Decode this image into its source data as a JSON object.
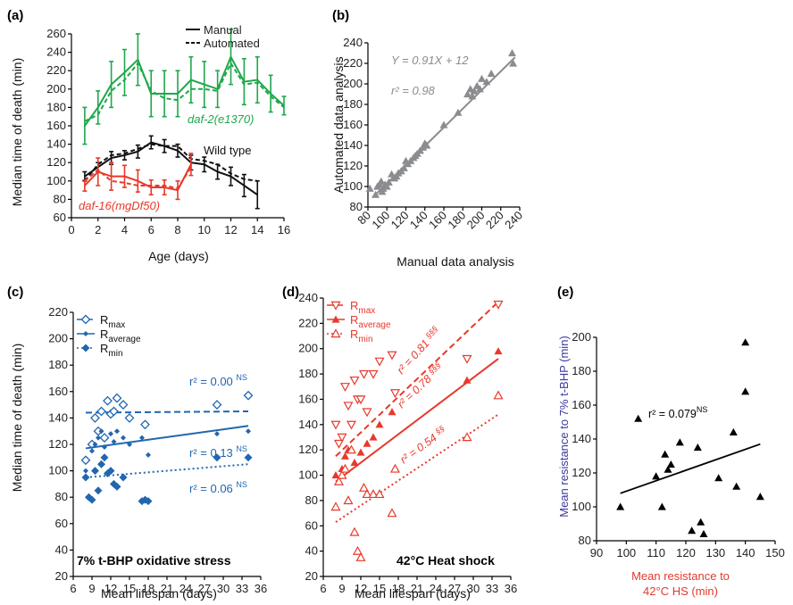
{
  "colors": {
    "green": "#1ea84b",
    "black": "#111111",
    "red": "#e8392b",
    "blue": "#2166b0",
    "gray": "#8a8c8f",
    "navy": "#3a3a9e",
    "tomato": "#e03a2e"
  },
  "chart_data": [
    {
      "id": "a",
      "panel_label": "(a)",
      "type": "line",
      "xlabel": "Age (days)",
      "ylabel": "Median time of death (min)",
      "xlim": [
        0,
        16
      ],
      "ylim": [
        60,
        260
      ],
      "xticks": [
        "0",
        "2",
        "4",
        "6",
        "8",
        "10",
        "12",
        "14",
        "16"
      ],
      "yticks": [
        "60",
        "80",
        "100",
        "120",
        "140",
        "160",
        "180",
        "200",
        "220",
        "240",
        "260"
      ],
      "legend": [
        "Manual",
        "Automated"
      ],
      "series": [
        {
          "name": "daf-2(e1370)",
          "color_key": "green",
          "style": "solid",
          "x": [
            1,
            2,
            3,
            4,
            5,
            6,
            7,
            8,
            9,
            10,
            11,
            12,
            13,
            14,
            15,
            16
          ],
          "y": [
            160,
            180,
            205,
            218,
            232,
            195,
            195,
            195,
            210,
            205,
            200,
            235,
            208,
            210,
            195,
            182
          ],
          "err": [
            20,
            18,
            25,
            25,
            28,
            25,
            25,
            25,
            25,
            25,
            20,
            30,
            25,
            25,
            20,
            10
          ]
        },
        {
          "name": "daf-2(e1370) automated",
          "color_key": "green",
          "style": "dashed",
          "x": [
            1,
            2,
            3,
            4,
            5,
            6,
            7,
            8,
            9,
            10,
            11,
            12,
            13,
            14,
            15,
            16
          ],
          "y": [
            165,
            172,
            198,
            210,
            228,
            198,
            190,
            188,
            200,
            200,
            198,
            228,
            205,
            207,
            192,
            180
          ]
        },
        {
          "name": "Wild type",
          "color_key": "black",
          "style": "solid",
          "x": [
            1,
            2,
            3,
            4,
            5,
            6,
            7,
            8,
            9,
            10,
            11,
            12,
            13,
            14
          ],
          "y": [
            105,
            115,
            125,
            128,
            132,
            142,
            138,
            133,
            120,
            118,
            110,
            105,
            95,
            85
          ],
          "err": [
            5,
            5,
            7,
            5,
            7,
            7,
            7,
            7,
            8,
            8,
            8,
            10,
            12,
            15
          ]
        },
        {
          "name": "Wild type automated",
          "color_key": "black",
          "style": "dashed",
          "x": [
            1,
            2,
            3,
            4,
            5,
            6,
            7,
            8,
            9,
            10,
            11,
            12,
            13,
            14
          ],
          "y": [
            100,
            118,
            128,
            130,
            135,
            140,
            138,
            138,
            124,
            122,
            118,
            108,
            102,
            100
          ]
        },
        {
          "name": "daf-16(mgDf50)",
          "color_key": "red",
          "style": "solid",
          "x": [
            1,
            2,
            3,
            4,
            5,
            6,
            7,
            8,
            9
          ],
          "y": [
            95,
            110,
            105,
            105,
            100,
            93,
            93,
            90,
            118
          ],
          "err": [
            6,
            15,
            15,
            12,
            12,
            8,
            8,
            10,
            12
          ]
        },
        {
          "name": "daf-16(mgDf50) automated",
          "color_key": "red",
          "style": "dashed",
          "x": [
            1,
            2,
            3,
            4,
            5,
            6,
            7,
            8,
            9
          ],
          "y": [
            100,
            112,
            100,
            98,
            95,
            95,
            95,
            92,
            115
          ]
        }
      ],
      "annotations": [
        {
          "text": "daf-2(e1370)",
          "color_key": "green"
        },
        {
          "text": "Wild type",
          "color_key": "black"
        },
        {
          "text": "daf-16(mgDf50)",
          "color_key": "red"
        }
      ]
    },
    {
      "id": "b",
      "panel_label": "(b)",
      "type": "scatter",
      "xlabel": "Manual data analysis",
      "ylabel": "Automated data analysis",
      "xlim": [
        80,
        240
      ],
      "ylim": [
        80,
        240
      ],
      "xticks": [
        "80",
        "100",
        "120",
        "140",
        "160",
        "180",
        "200",
        "220",
        "240"
      ],
      "yticks": [
        "80",
        "100",
        "120",
        "140",
        "160",
        "180",
        "200",
        "220",
        "240"
      ],
      "equation": "Y = 0.91X + 12",
      "r2": "r² = 0.98",
      "fit": {
        "slope": 0.91,
        "intercept": 12,
        "x_range": [
          85,
          235
        ]
      },
      "x": [
        82,
        88,
        90,
        92,
        94,
        95,
        96,
        98,
        100,
        102,
        105,
        108,
        110,
        112,
        115,
        118,
        120,
        122,
        125,
        128,
        130,
        132,
        135,
        138,
        140,
        142,
        160,
        175,
        185,
        188,
        190,
        192,
        195,
        198,
        200,
        205,
        210,
        232,
        233
      ],
      "y": [
        98,
        92,
        100,
        102,
        105,
        95,
        98,
        102,
        100,
        104,
        112,
        108,
        110,
        113,
        115,
        118,
        125,
        122,
        125,
        128,
        130,
        132,
        135,
        138,
        142,
        140,
        160,
        172,
        190,
        195,
        188,
        193,
        198,
        195,
        205,
        202,
        210,
        230,
        220
      ]
    },
    {
      "id": "c",
      "panel_label": "(c)",
      "type": "scatter",
      "xlabel": "Mean lifespan (days)",
      "ylabel": "Median time of death (min)",
      "xlim": [
        6,
        36
      ],
      "ylim": [
        20,
        220
      ],
      "xticks": [
        "6",
        "9",
        "12",
        "15",
        "18",
        "21",
        "24",
        "27",
        "30",
        "33",
        "36"
      ],
      "yticks": [
        "20",
        "40",
        "60",
        "80",
        "100",
        "120",
        "140",
        "160",
        "180",
        "200",
        "220"
      ],
      "caption": "7% t-BHP oxidative stress",
      "legend": [
        {
          "name": "Rmax",
          "marker": "diamond-open",
          "line": "dashed"
        },
        {
          "name": "Raverage",
          "marker": "diamond-filled-small",
          "line": "solid"
        },
        {
          "name": "Rmin",
          "marker": "diamond-filled",
          "line": "dotted"
        }
      ],
      "series": [
        {
          "name": "Rmax",
          "marker": "diamond-open",
          "x": [
            8,
            9,
            9.5,
            10,
            10.5,
            11,
            11.5,
            12,
            12.5,
            13,
            14,
            15,
            17.5,
            29,
            34
          ],
          "y": [
            108,
            120,
            140,
            130,
            145,
            125,
            153,
            143,
            145,
            155,
            150,
            140,
            135,
            150,
            157
          ],
          "fit": [
            [
              8,
              144
            ],
            [
              34,
              145
            ]
          ],
          "r2": "r² = 0.00",
          "sig": "NS"
        },
        {
          "name": "Raverage",
          "marker": "diamond-filled-small",
          "x": [
            8,
            9,
            9.5,
            10,
            10.5,
            11,
            12,
            12.5,
            13,
            14,
            15,
            17,
            18,
            29,
            34
          ],
          "y": [
            100,
            115,
            120,
            125,
            130,
            118,
            128,
            122,
            130,
            125,
            120,
            125,
            112,
            128,
            130
          ],
          "fit": [
            [
              8,
              117
            ],
            [
              34,
              134
            ]
          ],
          "r2": "r² = 0.13",
          "sig": "NS"
        },
        {
          "name": "Rmin",
          "marker": "diamond-filled",
          "x": [
            8,
            8.5,
            9,
            9.5,
            10,
            10.5,
            11,
            11.5,
            12,
            12.5,
            13,
            14,
            17,
            17.5,
            18,
            29,
            34
          ],
          "y": [
            95,
            80,
            78,
            100,
            85,
            105,
            110,
            98,
            100,
            90,
            88,
            95,
            77,
            78,
            77,
            110,
            110
          ],
          "fit": [
            [
              8,
              95
            ],
            [
              34,
              105
            ]
          ],
          "r2": "r² = 0.06",
          "sig": "NS"
        }
      ]
    },
    {
      "id": "d",
      "panel_label": "(d)",
      "type": "scatter",
      "xlabel": "Mean lifespan (days)",
      "ylabel": "",
      "xlim": [
        6,
        36
      ],
      "ylim": [
        20,
        240
      ],
      "xticks": [
        "6",
        "9",
        "12",
        "15",
        "18",
        "21",
        "24",
        "27",
        "30",
        "33",
        "36"
      ],
      "yticks": [
        "20",
        "40",
        "60",
        "80",
        "100",
        "120",
        "140",
        "160",
        "180",
        "200",
        "220",
        "240"
      ],
      "caption": "42°C Heat shock",
      "legend": [
        {
          "name": "Rmax",
          "marker": "triangle-down-open",
          "line": "dashed"
        },
        {
          "name": "Raverage",
          "marker": "triangle-filled",
          "line": "solid"
        },
        {
          "name": "Rmin",
          "marker": "triangle-open",
          "line": "dotted"
        }
      ],
      "series": [
        {
          "name": "Rmax",
          "marker": "triangle-down-open",
          "x": [
            8,
            8.5,
            9,
            9.5,
            10,
            10.5,
            11,
            11.5,
            12,
            12.5,
            13,
            14,
            15,
            17,
            17.5,
            29,
            34
          ],
          "y": [
            140,
            125,
            130,
            170,
            155,
            140,
            175,
            160,
            160,
            180,
            150,
            180,
            190,
            195,
            165,
            192,
            235
          ],
          "fit": [
            [
              8,
              115
            ],
            [
              34,
              237
            ]
          ],
          "r2": "r² = 0.81",
          "sig": "§§§"
        },
        {
          "name": "Raverage",
          "marker": "triangle-filled",
          "x": [
            8,
            9,
            9.5,
            10,
            11,
            12,
            13,
            14,
            15,
            17,
            29,
            34
          ],
          "y": [
            100,
            105,
            115,
            120,
            110,
            118,
            125,
            130,
            140,
            150,
            175,
            198
          ],
          "fit": [
            [
              8,
              95
            ],
            [
              34,
              192
            ]
          ],
          "r2": "r² = 0.78",
          "sig": "§§§"
        },
        {
          "name": "Rmin",
          "marker": "triangle-open",
          "x": [
            8,
            8.5,
            9,
            9.5,
            10,
            10.5,
            11,
            11.5,
            12,
            12.5,
            13,
            14,
            15,
            17,
            17.5,
            29,
            34
          ],
          "y": [
            75,
            95,
            100,
            105,
            80,
            120,
            55,
            40,
            35,
            90,
            85,
            85,
            85,
            70,
            105,
            130,
            163
          ],
          "fit": [
            [
              8,
              63
            ],
            [
              34,
              148
            ]
          ],
          "r2": "r² = 0.54",
          "sig": "§§"
        }
      ]
    },
    {
      "id": "e",
      "panel_label": "(e)",
      "type": "scatter",
      "xlabel": "Mean resistance to 42°C HS (min)",
      "ylabel": "Mean resistance to 7% t-BHP (min)",
      "xlim": [
        90,
        150
      ],
      "ylim": [
        80,
        200
      ],
      "xticks": [
        "90",
        "100",
        "110",
        "120",
        "130",
        "140",
        "150"
      ],
      "yticks": [
        "80",
        "100",
        "120",
        "140",
        "160",
        "180",
        "200"
      ],
      "r2": "r² = 0.079",
      "sig": "NS",
      "fit": [
        [
          98,
          108
        ],
        [
          145,
          137
        ]
      ],
      "x": [
        98,
        104,
        110,
        112,
        113,
        114,
        115,
        118,
        122,
        124,
        125,
        126,
        131,
        136,
        137,
        140,
        140,
        145
      ],
      "y": [
        100,
        152,
        118,
        100,
        131,
        122,
        125,
        138,
        86,
        135,
        91,
        84,
        117,
        144,
        112,
        168,
        197,
        106
      ]
    }
  ]
}
